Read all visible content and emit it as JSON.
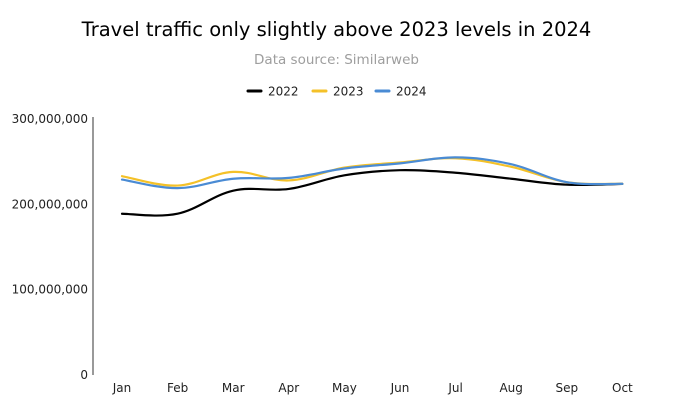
{
  "chart_data": {
    "type": "line",
    "title": "Travel traffic only slightly above 2023 levels in 2024",
    "subtitle": "Data source: Similarweb",
    "categories": [
      "Jan",
      "Feb",
      "Mar",
      "Apr",
      "May",
      "Jun",
      "Jul",
      "Aug",
      "Sep",
      "Oct"
    ],
    "series": [
      {
        "name": "2022",
        "color": "#000000",
        "values": [
          189000000,
          189000000,
          216000000,
          218000000,
          234000000,
          240000000,
          237000000,
          230000000,
          223000000,
          224000000
        ]
      },
      {
        "name": "2023",
        "color": "#f4c128",
        "values": [
          233000000,
          222000000,
          238000000,
          228000000,
          243000000,
          249000000,
          254000000,
          244000000,
          226000000,
          224000000
        ]
      },
      {
        "name": "2024",
        "color": "#4a8bd4",
        "values": [
          229000000,
          219000000,
          230000000,
          231000000,
          242000000,
          248000000,
          255000000,
          247000000,
          226000000,
          224000000
        ]
      }
    ],
    "y_ticks": [
      0,
      100000000,
      200000000,
      300000000
    ],
    "y_tick_labels": [
      "0",
      "100,000,000",
      "200,000,000",
      "300,000,000"
    ],
    "ylim": [
      0,
      300000000
    ],
    "xlabel": "",
    "ylabel": "",
    "legend_position": "top-center",
    "grid": false
  }
}
